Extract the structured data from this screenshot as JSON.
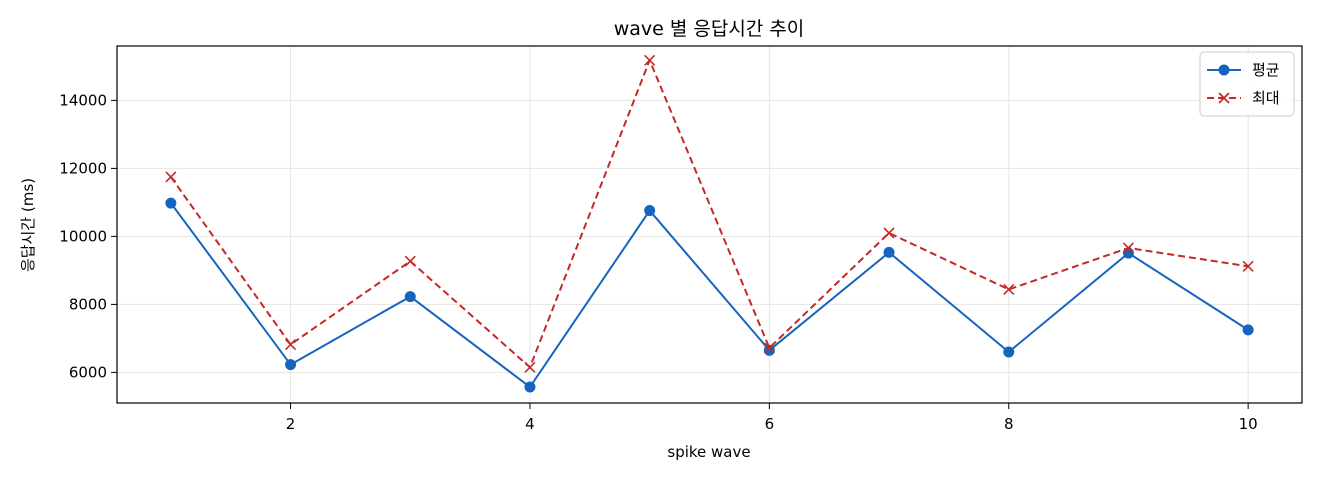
{
  "chart_data": {
    "type": "line",
    "title": "wave 별 응답시간 추이",
    "xlabel": "spike wave",
    "ylabel": "응답시간 (ms)",
    "x": [
      1,
      2,
      3,
      4,
      5,
      6,
      7,
      8,
      9,
      10
    ],
    "xlim": [
      0.55,
      10.45
    ],
    "ylim": [
      5100,
      15600
    ],
    "x_ticks": [
      2,
      4,
      6,
      8,
      10
    ],
    "y_ticks": [
      6000,
      8000,
      10000,
      12000,
      14000
    ],
    "grid": true,
    "legend_position": "top-right",
    "series": [
      {
        "name": "평균",
        "color": "#1565c0",
        "line_style": "solid",
        "marker": "circle",
        "values": [
          10980,
          6230,
          8230,
          5570,
          10760,
          6650,
          9530,
          6600,
          9510,
          7250
        ]
      },
      {
        "name": "최대",
        "color": "#c62828",
        "line_style": "dashed",
        "marker": "x",
        "values": [
          11750,
          6820,
          9270,
          6150,
          15180,
          6720,
          10100,
          8440,
          9660,
          9120
        ]
      }
    ]
  }
}
